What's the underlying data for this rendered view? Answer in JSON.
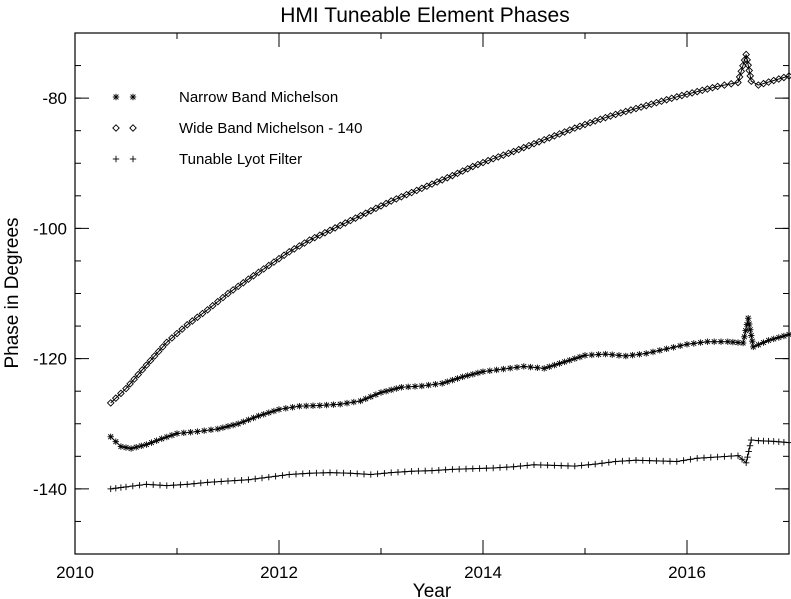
{
  "chart_data": {
    "type": "line",
    "title": "HMI Tuneable Element Phases",
    "xlabel": "Year",
    "ylabel": "Phase in Degrees",
    "xlim": [
      2010,
      2017
    ],
    "ylim": [
      -150,
      -70
    ],
    "x_ticks": [
      "2010",
      "2012",
      "2014",
      "2016"
    ],
    "y_ticks": [
      "-80",
      "-100",
      "-120",
      "-140"
    ],
    "x_tick_values": [
      2010,
      2012,
      2014,
      2016
    ],
    "y_tick_values": [
      -80,
      -100,
      -120,
      -140
    ],
    "grid": false,
    "legend_position": "top-left",
    "series": [
      {
        "name": "Narrow Band Michelson",
        "marker": "asterisk",
        "x": [
          2010.35,
          2010.45,
          2010.55,
          2010.7,
          2010.85,
          2011.0,
          2011.2,
          2011.4,
          2011.6,
          2011.8,
          2012.0,
          2012.2,
          2012.4,
          2012.6,
          2012.8,
          2013.0,
          2013.2,
          2013.4,
          2013.6,
          2013.8,
          2014.0,
          2014.2,
          2014.4,
          2014.6,
          2014.8,
          2015.0,
          2015.2,
          2015.4,
          2015.6,
          2015.8,
          2016.0,
          2016.2,
          2016.4,
          2016.55,
          2016.6,
          2016.65,
          2016.8,
          2017.0
        ],
        "y": [
          -132,
          -133.5,
          -133.8,
          -133.2,
          -132.3,
          -131.5,
          -131.2,
          -130.8,
          -130.0,
          -128.8,
          -127.8,
          -127.3,
          -127.2,
          -127.0,
          -126.5,
          -125.2,
          -124.4,
          -124.2,
          -123.8,
          -122.8,
          -122.0,
          -121.6,
          -121.2,
          -121.5,
          -120.5,
          -119.5,
          -119.3,
          -119.6,
          -119.2,
          -118.5,
          -117.8,
          -117.4,
          -117.4,
          -117.6,
          -113.8,
          -118.2,
          -117.2,
          -116.3
        ]
      },
      {
        "name": "Wide Band Michelson - 140",
        "marker": "diamond",
        "x": [
          2010.35,
          2010.5,
          2010.7,
          2010.9,
          2011.1,
          2011.3,
          2011.5,
          2011.7,
          2011.9,
          2012.1,
          2012.3,
          2012.5,
          2012.7,
          2012.9,
          2013.1,
          2013.3,
          2013.5,
          2013.7,
          2013.9,
          2014.1,
          2014.3,
          2014.5,
          2014.7,
          2014.9,
          2015.1,
          2015.3,
          2015.5,
          2015.7,
          2015.9,
          2016.1,
          2016.3,
          2016.5,
          2016.58,
          2016.63,
          2016.7,
          2016.85,
          2017.0
        ],
        "y": [
          -126.8,
          -124.6,
          -121.0,
          -117.5,
          -114.8,
          -112.5,
          -110.0,
          -107.8,
          -105.7,
          -103.6,
          -101.8,
          -100.3,
          -98.8,
          -97.3,
          -95.8,
          -94.5,
          -93.2,
          -91.9,
          -90.5,
          -89.3,
          -88.2,
          -87.0,
          -85.8,
          -84.6,
          -83.5,
          -82.5,
          -81.6,
          -80.7,
          -79.8,
          -79.0,
          -78.2,
          -77.6,
          -73.3,
          -77.4,
          -78.0,
          -77.3,
          -76.6
        ]
      },
      {
        "name": "Tunable Lyot Filter",
        "marker": "plus",
        "x": [
          2010.35,
          2010.5,
          2010.7,
          2010.9,
          2011.1,
          2011.3,
          2011.5,
          2011.7,
          2011.9,
          2012.1,
          2012.3,
          2012.5,
          2012.7,
          2012.9,
          2013.1,
          2013.3,
          2013.5,
          2013.7,
          2013.9,
          2014.1,
          2014.3,
          2014.5,
          2014.7,
          2014.9,
          2015.1,
          2015.3,
          2015.5,
          2015.7,
          2015.9,
          2016.1,
          2016.3,
          2016.5,
          2016.58,
          2016.63,
          2016.7,
          2016.85,
          2017.0
        ],
        "y": [
          -140,
          -139.7,
          -139.3,
          -139.5,
          -139.3,
          -139.0,
          -138.8,
          -138.6,
          -138.2,
          -137.8,
          -137.6,
          -137.5,
          -137.6,
          -137.8,
          -137.5,
          -137.3,
          -137.2,
          -137.0,
          -136.9,
          -136.8,
          -136.6,
          -136.3,
          -136.4,
          -136.5,
          -136.2,
          -135.8,
          -135.6,
          -135.7,
          -135.8,
          -135.3,
          -135.1,
          -134.9,
          -136.0,
          -132.5,
          -132.6,
          -132.7,
          -132.9
        ]
      }
    ]
  }
}
